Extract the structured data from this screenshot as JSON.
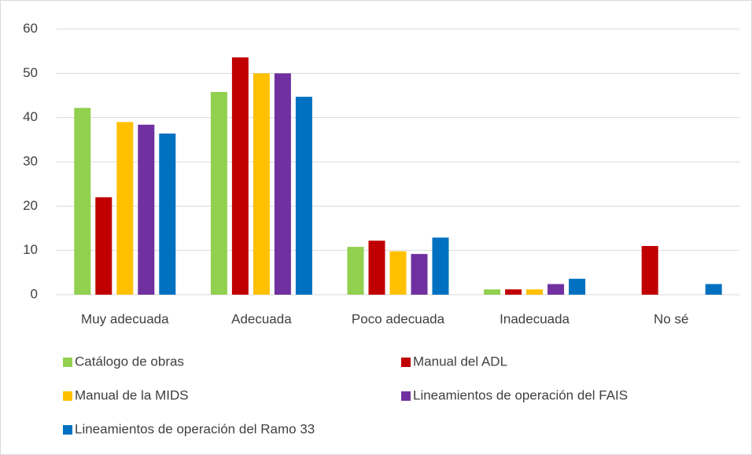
{
  "chart_data": {
    "type": "bar",
    "categories": [
      "Muy adecuada",
      "Adecuada",
      "Poco adecuada",
      "Inadecuada",
      "No sé"
    ],
    "series": [
      {
        "name": "Catálogo de obras",
        "color": "#92d050",
        "values": [
          42.2,
          45.8,
          10.8,
          1.2,
          0
        ]
      },
      {
        "name": "Manual del ADL",
        "color": "#c00000",
        "values": [
          22,
          53.6,
          12.2,
          1.2,
          11
        ]
      },
      {
        "name": "Manual de la MIDS",
        "color": "#ffc000",
        "values": [
          39,
          50,
          9.8,
          1.2,
          0
        ]
      },
      {
        "name": "Lineamientos de operación del FAIS",
        "color": "#7030a0",
        "values": [
          38.4,
          50,
          9.2,
          2.4,
          0
        ]
      },
      {
        "name": "Lineamientos de operación  del Ramo 33",
        "color": "#0070c0",
        "values": [
          36.4,
          44.7,
          12.9,
          3.6,
          2.4
        ]
      }
    ],
    "ylim": [
      0,
      60
    ],
    "yticks": [
      0,
      10,
      20,
      30,
      40,
      50,
      60
    ],
    "grid": true,
    "legend": "bottom"
  }
}
